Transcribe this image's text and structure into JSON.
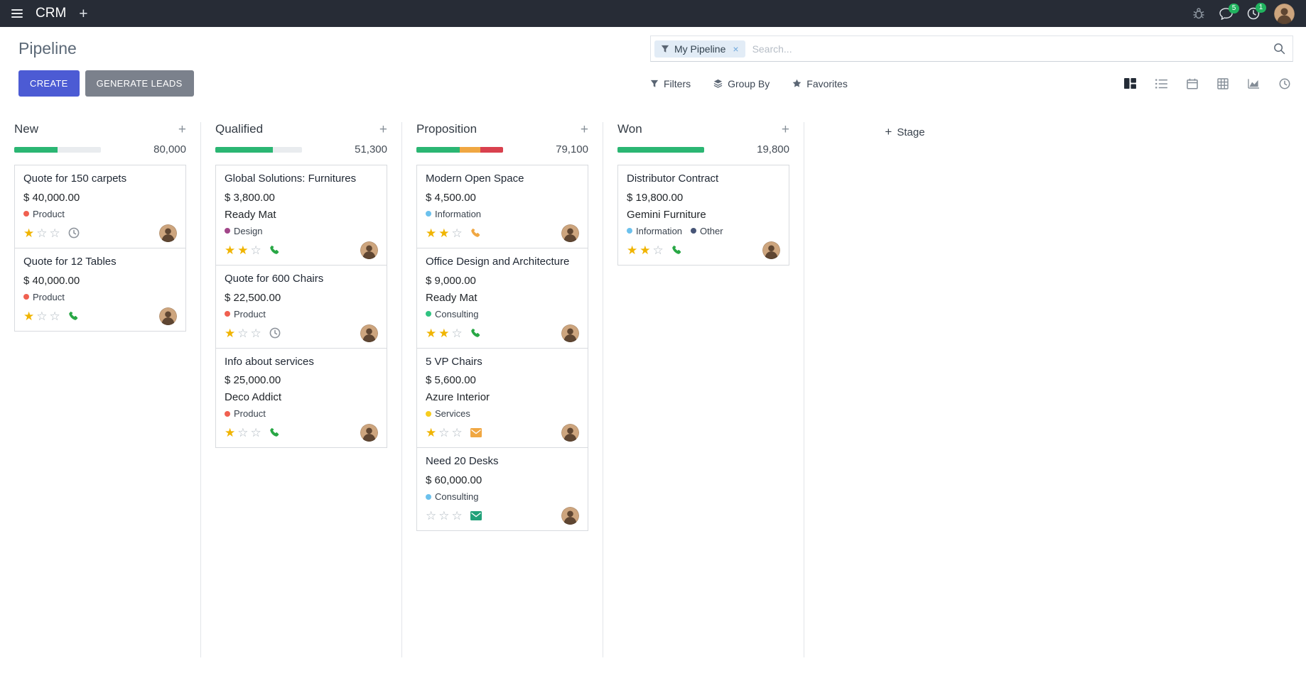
{
  "colors": {
    "primary": "#4c5bd4",
    "secondary": "#7b818c",
    "topbar_bg": "#272c36",
    "badge": "#21b35f",
    "star_on": "#f0b400",
    "star_off": "#b0b9c1",
    "facet_bg": "#e2ecf6"
  },
  "topbar": {
    "app_name": "CRM",
    "messages_badge": "5",
    "activities_badge": "1"
  },
  "control_panel": {
    "title": "Pipeline",
    "search": {
      "facet_label": "My Pipeline",
      "placeholder": "Search..."
    },
    "buttons": {
      "create": "CREATE",
      "generate_leads": "GENERATE LEADS"
    },
    "menus": {
      "filters": "Filters",
      "group_by": "Group By",
      "favorites": "Favorites"
    }
  },
  "board": {
    "add_stage": "Stage",
    "columns": [
      {
        "name": "New",
        "total": "80,000",
        "progress": [
          {
            "color": "#2bb673",
            "pct": 50
          }
        ],
        "cards": [
          {
            "title": "Quote for 150 carpets",
            "amount": "$ 40,000.00",
            "partner": null,
            "tags": [
              {
                "label": "Product",
                "color": "#f06050"
              }
            ],
            "stars": 1,
            "activity": {
              "icon": "clock",
              "color": "#8f959d"
            }
          },
          {
            "title": "Quote for 12 Tables",
            "amount": "$ 40,000.00",
            "partner": null,
            "tags": [
              {
                "label": "Product",
                "color": "#f06050"
              }
            ],
            "stars": 1,
            "activity": {
              "icon": "phone",
              "color": "#28a745"
            }
          }
        ]
      },
      {
        "name": "Qualified",
        "total": "51,300",
        "progress": [
          {
            "color": "#2bb673",
            "pct": 66
          }
        ],
        "cards": [
          {
            "title": "Global Solutions: Furnitures",
            "amount": "$ 3,800.00",
            "partner": "Ready Mat",
            "tags": [
              {
                "label": "Design",
                "color": "#a24689"
              }
            ],
            "stars": 2,
            "activity": {
              "icon": "phone",
              "color": "#28a745"
            }
          },
          {
            "title": "Quote for 600 Chairs",
            "amount": "$ 22,500.00",
            "partner": null,
            "tags": [
              {
                "label": "Product",
                "color": "#f06050"
              }
            ],
            "stars": 1,
            "activity": {
              "icon": "clock",
              "color": "#8f959d"
            }
          },
          {
            "title": "Info about services",
            "amount": "$ 25,000.00",
            "partner": "Deco Addict",
            "tags": [
              {
                "label": "Product",
                "color": "#f06050"
              }
            ],
            "stars": 1,
            "activity": {
              "icon": "phone",
              "color": "#28a745"
            }
          }
        ]
      },
      {
        "name": "Proposition",
        "total": "79,100",
        "progress": [
          {
            "color": "#2bb673",
            "pct": 50
          },
          {
            "color": "#f0a742",
            "pct": 24
          },
          {
            "color": "#d9414e",
            "pct": 26
          }
        ],
        "cards": [
          {
            "title": "Modern Open Space",
            "amount": "$ 4,500.00",
            "partner": null,
            "tags": [
              {
                "label": "Information",
                "color": "#6cc1ed"
              }
            ],
            "stars": 2,
            "activity": {
              "icon": "phone",
              "color": "#f0a742"
            }
          },
          {
            "title": "Office Design and Architecture",
            "amount": "$ 9,000.00",
            "partner": "Ready Mat",
            "tags": [
              {
                "label": "Consulting",
                "color": "#30c381"
              }
            ],
            "stars": 2,
            "activity": {
              "icon": "phone",
              "color": "#28a745"
            }
          },
          {
            "title": "5 VP Chairs",
            "amount": "$ 5,600.00",
            "partner": "Azure Interior",
            "tags": [
              {
                "label": "Services",
                "color": "#f7cd1f"
              }
            ],
            "stars": 1,
            "activity": {
              "icon": "envelope",
              "color": "#f0a742"
            }
          },
          {
            "title": "Need 20 Desks",
            "amount": "$ 60,000.00",
            "partner": null,
            "tags": [
              {
                "label": "Consulting",
                "color": "#6cc1ed"
              }
            ],
            "stars": 0,
            "activity": {
              "icon": "envelope",
              "color": "#21a179"
            }
          }
        ]
      },
      {
        "name": "Won",
        "total": "19,800",
        "progress": [
          {
            "color": "#2bb673",
            "pct": 100
          }
        ],
        "cards": [
          {
            "title": "Distributor Contract",
            "amount": "$ 19,800.00",
            "partner": "Gemini Furniture",
            "tags": [
              {
                "label": "Information",
                "color": "#6cc1ed"
              },
              {
                "label": "Other",
                "color": "#475577"
              }
            ],
            "stars": 2,
            "activity": {
              "icon": "phone",
              "color": "#28a745"
            }
          }
        ]
      }
    ]
  }
}
